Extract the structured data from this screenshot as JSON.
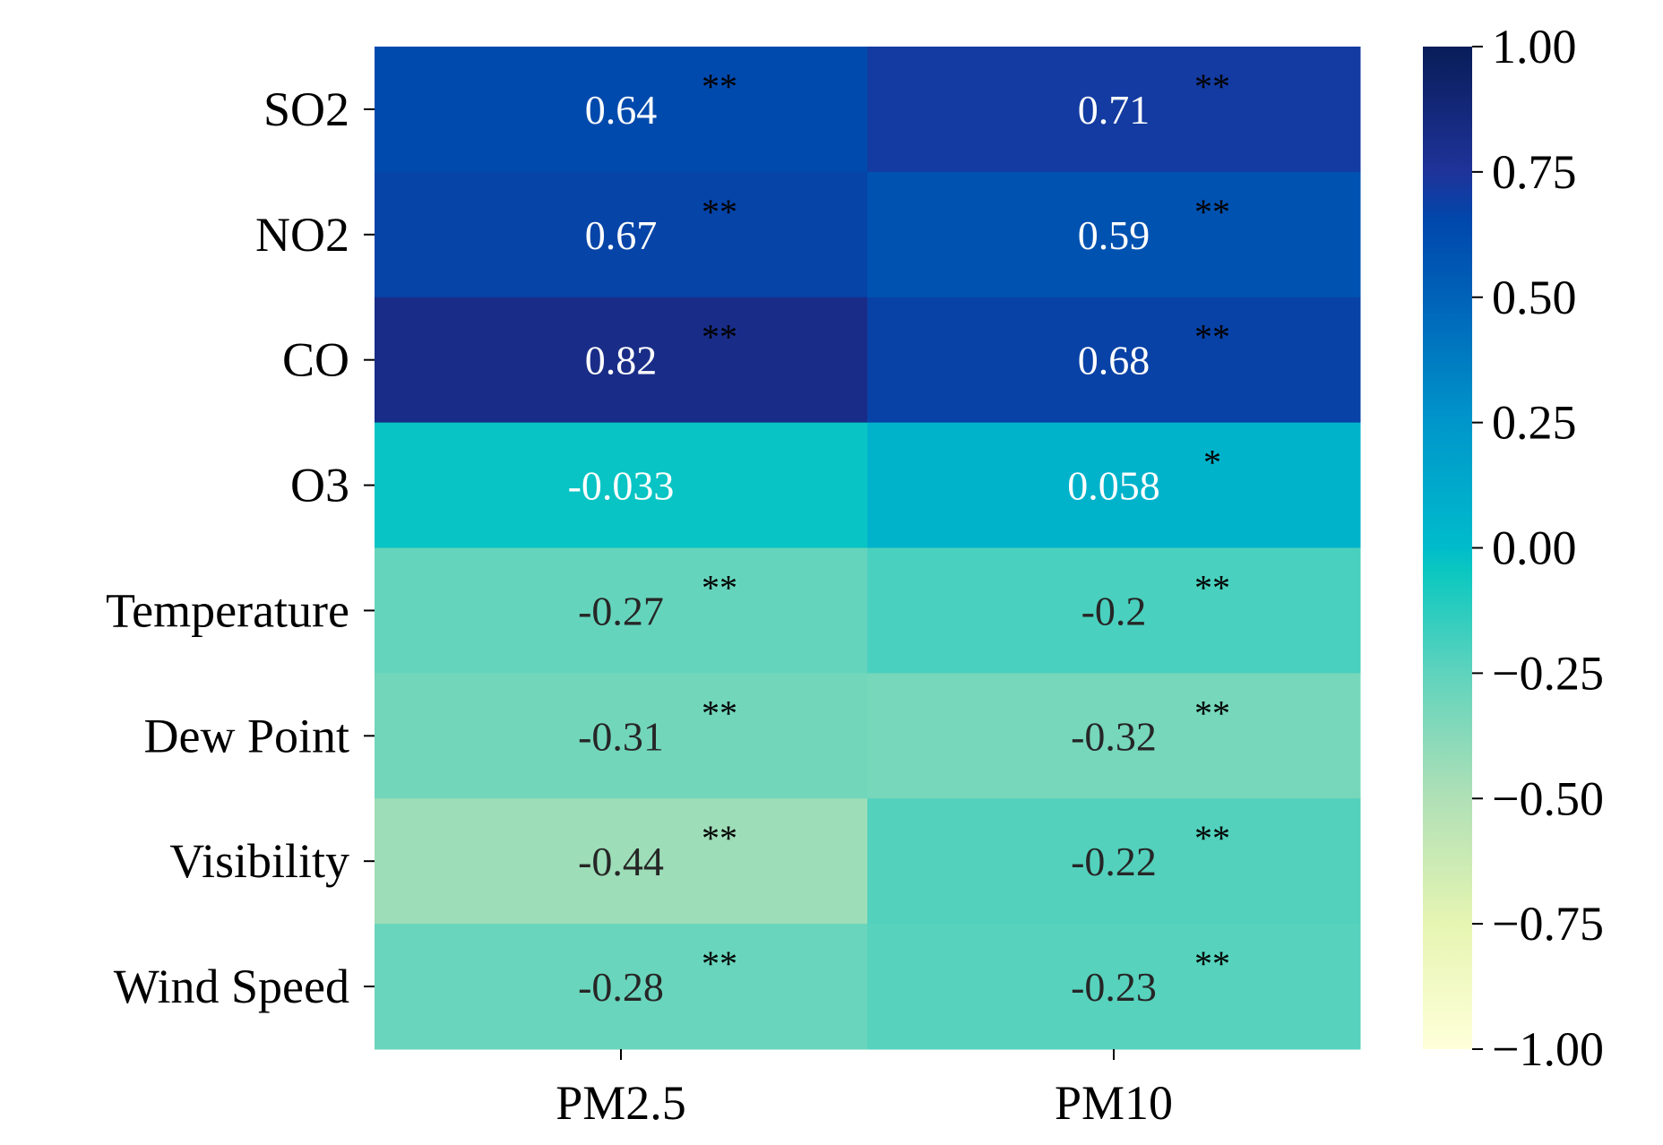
{
  "chart_data": {
    "type": "heatmap",
    "title": "",
    "xlabel": "",
    "ylabel": "",
    "columns": [
      "PM2.5",
      "PM10"
    ],
    "rows": [
      "SO2",
      "NO2",
      "CO",
      "O3",
      "Temperature",
      "Dew Point",
      "Visibility",
      "Wind Speed"
    ],
    "values": [
      [
        0.64,
        0.71
      ],
      [
        0.67,
        0.59
      ],
      [
        0.82,
        0.68
      ],
      [
        -0.033,
        0.058
      ],
      [
        -0.27,
        -0.2
      ],
      [
        -0.31,
        -0.32
      ],
      [
        -0.44,
        -0.22
      ],
      [
        -0.28,
        -0.23
      ]
    ],
    "value_labels": [
      [
        "0.64",
        "0.71"
      ],
      [
        "0.67",
        "0.59"
      ],
      [
        "0.82",
        "0.68"
      ],
      [
        "-0.033",
        "0.058"
      ],
      [
        "-0.27",
        "-0.2"
      ],
      [
        "-0.31",
        "-0.32"
      ],
      [
        "-0.44",
        "-0.22"
      ],
      [
        "-0.28",
        "-0.23"
      ]
    ],
    "significance": [
      [
        "**",
        "**"
      ],
      [
        "**",
        "**"
      ],
      [
        "**",
        "**"
      ],
      [
        "",
        "*"
      ],
      [
        "**",
        "**"
      ],
      [
        "**",
        "**"
      ],
      [
        "**",
        "**"
      ],
      [
        "**",
        "**"
      ]
    ],
    "colorbar": {
      "range": [
        -1.0,
        1.0
      ],
      "ticks": [
        1.0,
        0.75,
        0.5,
        0.25,
        0.0,
        -0.25,
        -0.5,
        -0.75,
        -1.0
      ],
      "tick_labels": [
        "1.00",
        "0.75",
        "0.50",
        "0.25",
        "0.00",
        "−0.25",
        "−0.50",
        "−0.75",
        "−1.00"
      ],
      "colormap": "YlGnBu-like",
      "stops": [
        {
          "v": -1.0,
          "color": "#ffffd9"
        },
        {
          "v": -0.75,
          "color": "#e6f5b2"
        },
        {
          "v": -0.5,
          "color": "#b0e0b6"
        },
        {
          "v": -0.25,
          "color": "#5fd3bd"
        },
        {
          "v": -0.05,
          "color": "#0cc8c0"
        },
        {
          "v": 0.0,
          "color": "#00bccb"
        },
        {
          "v": 0.25,
          "color": "#0096cb"
        },
        {
          "v": 0.5,
          "color": "#0062b8"
        },
        {
          "v": 0.65,
          "color": "#0048ac"
        },
        {
          "v": 0.75,
          "color": "#1f339a"
        },
        {
          "v": 1.0,
          "color": "#081d58"
        }
      ]
    },
    "text_colors": {
      "light": "#ffffff",
      "dark": "#262626"
    }
  }
}
